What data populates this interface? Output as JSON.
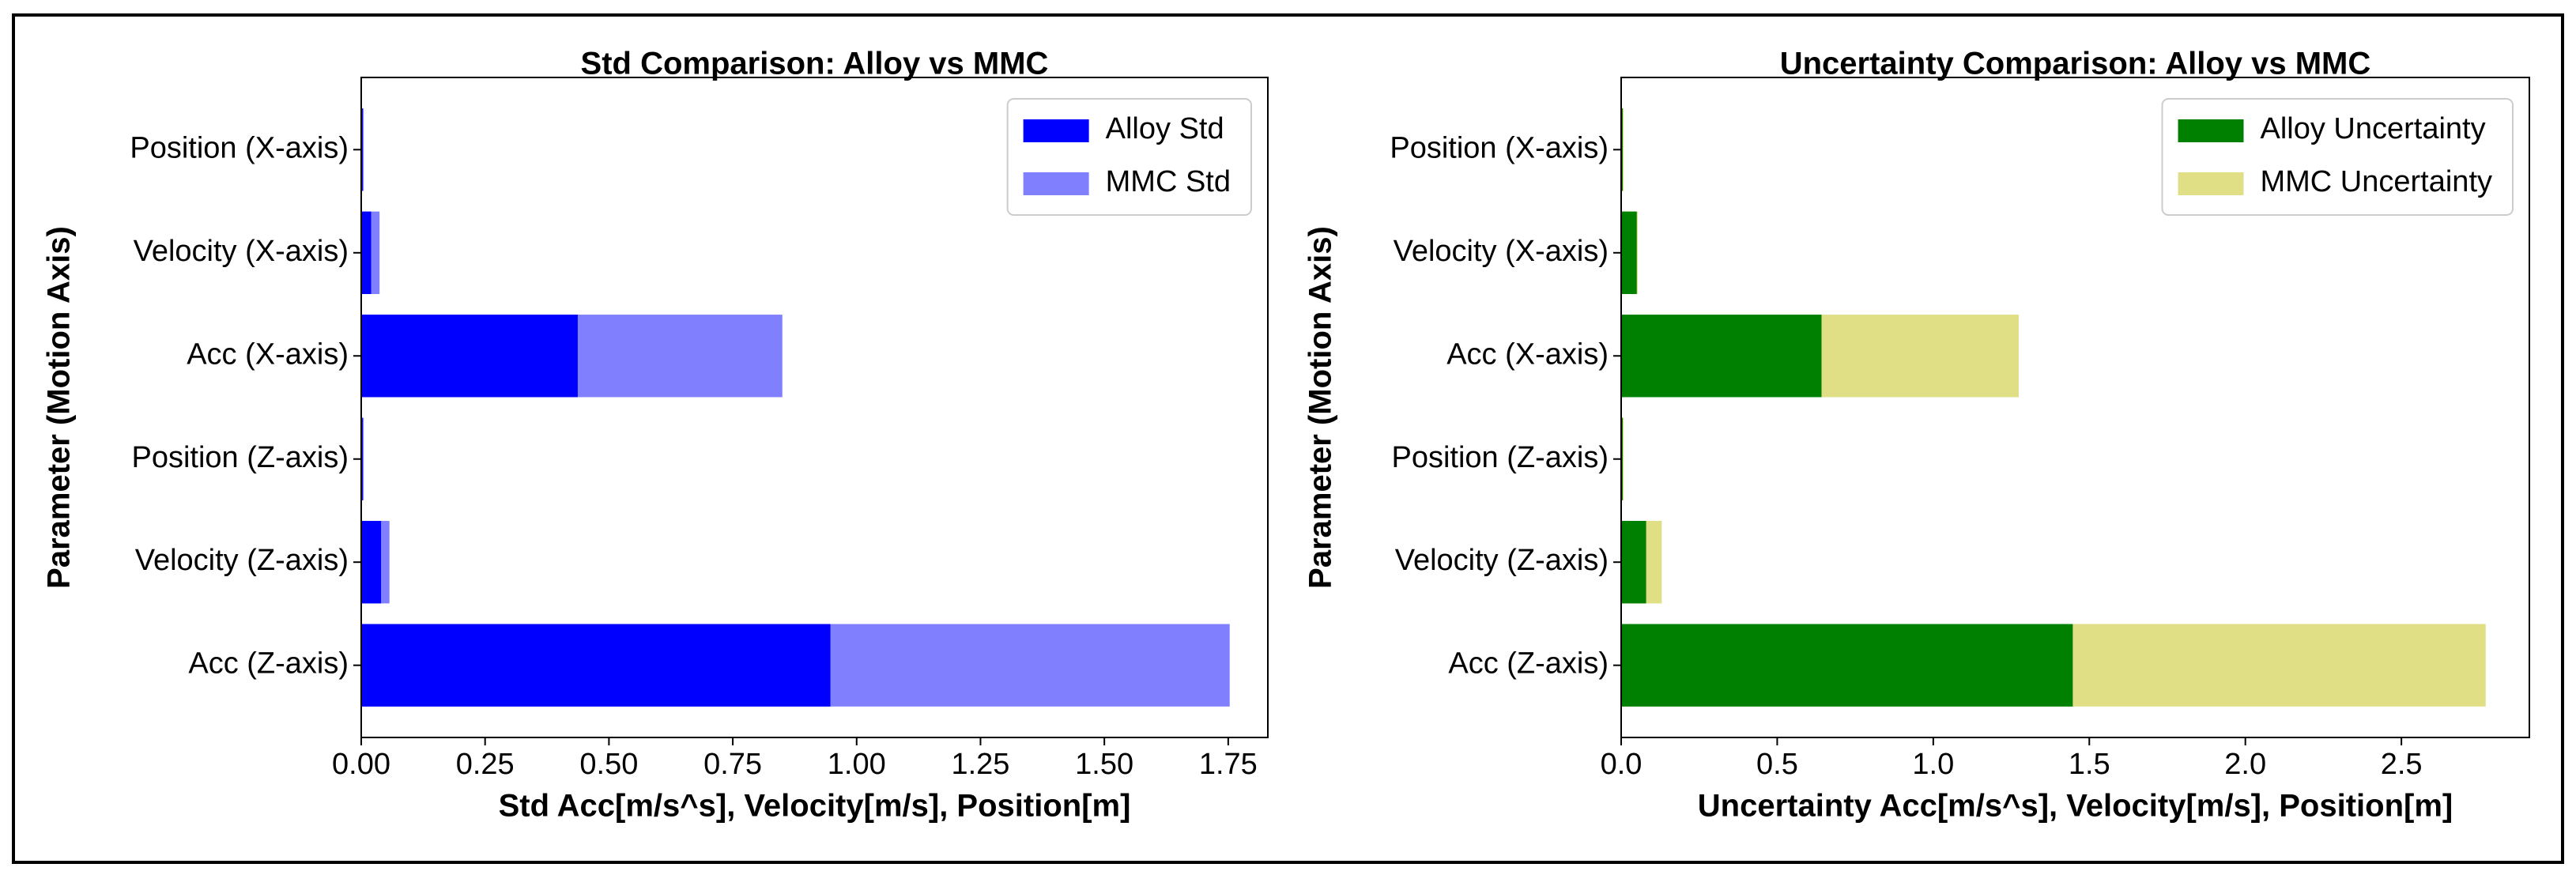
{
  "chart_data": [
    {
      "type": "barh",
      "title": "Std Comparison: Alloy vs MMC",
      "xlabel": "Std  Acc[m/s^s], Velocity[m/s], Position[m]",
      "ylabel": "Parameter (Motion Axis)",
      "categories": [
        "Position (X-axis)",
        "Velocity (X-axis)",
        "Acc (X-axis)",
        "Position (Z-axis)",
        "Velocity (Z-axis)",
        "Acc (Z-axis)"
      ],
      "series": [
        {
          "name": "Alloy Std",
          "color": "#0000ff",
          "values": [
            0.003,
            0.02,
            0.437,
            0.003,
            0.04,
            0.947
          ]
        },
        {
          "name": "MMC Std",
          "color": "#8080ff",
          "values": [
            0.005,
            0.037,
            0.85,
            0.005,
            0.057,
            1.753
          ]
        }
      ],
      "xlim": [
        0,
        1.83
      ],
      "xticks": [
        {
          "value": 0,
          "label": "0.00"
        },
        0.25,
        {
          "value": 0.5,
          "label": "0.50"
        },
        0.75,
        {
          "value": 1,
          "label": "1.00"
        },
        1.25,
        {
          "value": 1.5,
          "label": "1.50"
        },
        1.75
      ],
      "legend": "upper right"
    },
    {
      "type": "barh",
      "title": "Uncertainty Comparison: Alloy vs MMC",
      "xlabel": "Uncertainty Acc[m/s^s], Velocity[m/s], Position[m]",
      "ylabel": "Parameter (Motion Axis)",
      "categories": [
        "Position (X-axis)",
        "Velocity (X-axis)",
        "Acc (X-axis)",
        "Position (Z-axis)",
        "Velocity (Z-axis)",
        "Acc (Z-axis)"
      ],
      "series": [
        {
          "name": "Alloy Uncertainty",
          "color": "#008000",
          "values": [
            0.005,
            0.05,
            0.642,
            0.005,
            0.08,
            1.447
          ]
        },
        {
          "name": "MMC Uncertainty",
          "color": "#e0df85",
          "values": [
            0.008,
            0.053,
            1.274,
            0.008,
            0.13,
            2.77
          ]
        }
      ],
      "xlim": [
        0,
        2.91
      ],
      "xticks": [
        {
          "value": 0,
          "label": "0.0"
        },
        0.5,
        {
          "value": 1,
          "label": "1.0"
        },
        1.5,
        {
          "value": 2,
          "label": "2.0"
        },
        2.5
      ],
      "legend": "upper right"
    }
  ]
}
